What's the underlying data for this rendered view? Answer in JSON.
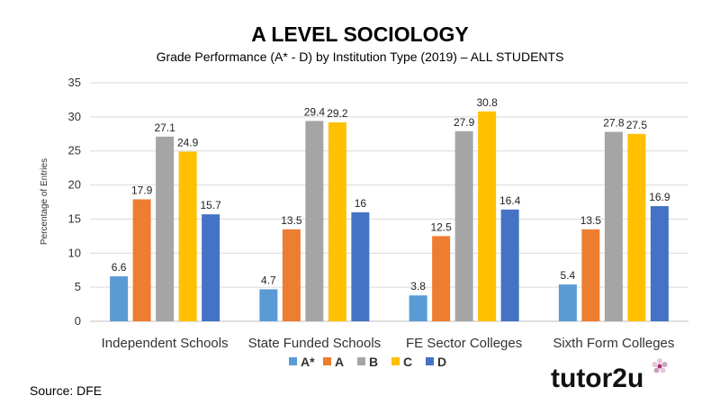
{
  "chart_data": {
    "type": "bar",
    "title": "A LEVEL SOCIOLOGY",
    "subtitle": "Grade Performance (A* - D) by Institution Type (2019) – ALL STUDENTS",
    "xlabel": "",
    "ylabel": "Percentage of Entries",
    "ylim": [
      0,
      35
    ],
    "yticks": [
      0,
      5,
      10,
      15,
      20,
      25,
      30,
      35
    ],
    "grid": true,
    "legend_position": "bottom",
    "categories": [
      "Independent Schools",
      "State Funded Schools",
      "FE Sector Colleges",
      "Sixth Form Colleges"
    ],
    "series": [
      {
        "name": "A*",
        "color": "#5B9BD5",
        "values": [
          6.6,
          4.7,
          3.8,
          5.4
        ]
      },
      {
        "name": "A",
        "color": "#ED7D31",
        "values": [
          17.9,
          13.5,
          12.5,
          13.5
        ]
      },
      {
        "name": "B",
        "color": "#A5A5A5",
        "values": [
          27.1,
          29.4,
          27.9,
          27.8
        ]
      },
      {
        "name": "C",
        "color": "#FFC000",
        "values": [
          24.9,
          29.2,
          30.8,
          27.5
        ]
      },
      {
        "name": "D",
        "color": "#4472C4",
        "values": [
          15.7,
          16,
          16.4,
          16.9
        ]
      }
    ]
  },
  "footer": {
    "source": "Source: DFE",
    "brand": "tutor2u"
  }
}
